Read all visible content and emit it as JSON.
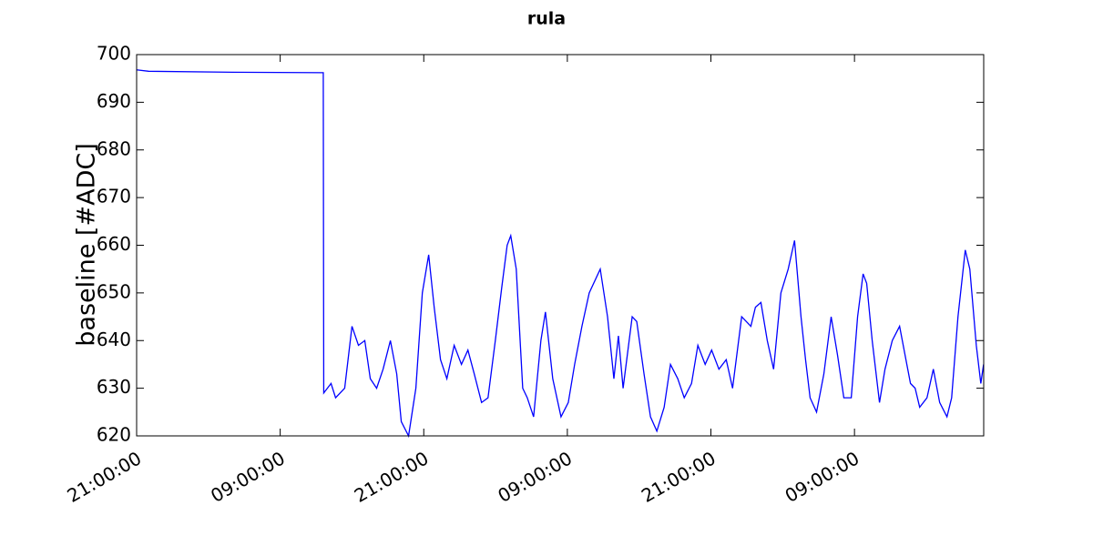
{
  "chart_data": {
    "type": "line",
    "title": "rula",
    "y_label": "baseline [#ADC]",
    "x": [
      0,
      1,
      8,
      15.6,
      15.64,
      16.25,
      16.63,
      17.39,
      18.0,
      18.54,
      19.07,
      19.53,
      20.06,
      20.6,
      21.21,
      21.74,
      22.12,
      22.73,
      23.34,
      23.88,
      24.41,
      24.87,
      25.4,
      25.93,
      26.54,
      27.15,
      27.69,
      28.22,
      28.83,
      29.37,
      29.98,
      30.51,
      30.97,
      31.27,
      31.73,
      32.27,
      32.65,
      33.18,
      33.79,
      34.17,
      34.78,
      35.47,
      36.08,
      36.61,
      37.22,
      37.83,
      38.75,
      39.36,
      39.89,
      40.27,
      40.66,
      41.42,
      41.8,
      42.41,
      42.95,
      43.48,
      44.09,
      44.62,
      45.23,
      45.77,
      46.38,
      46.91,
      47.52,
      48.06,
      48.67,
      49.28,
      49.81,
      50.57,
      51.34,
      51.72,
      52.18,
      52.71,
      53.24,
      53.85,
      54.46,
      54.99,
      55.53,
      55.91,
      56.29,
      56.83,
      57.44,
      58.05,
      58.58,
      59.11,
      59.73,
      60.26,
      60.72,
      61.02,
      61.48,
      62.09,
      62.55,
      63.16,
      63.77,
      64.3,
      64.68,
      65.07,
      65.45,
      66.06,
      66.59,
      67.12,
      67.73,
      68.12,
      68.65,
      69.26,
      69.64,
      70.18,
      70.56,
      70.79
    ],
    "series": [
      {
        "name": "baseline",
        "color": "#0000ff",
        "values": [
          696.8,
          696.5,
          696.3,
          696.2,
          629,
          631,
          628,
          630,
          643,
          639,
          640,
          632,
          630,
          634,
          640,
          633,
          623,
          620,
          630,
          650,
          658,
          647,
          636,
          632,
          639,
          635,
          638,
          633,
          627,
          628,
          640,
          651,
          660,
          662,
          655,
          630,
          628,
          624,
          640,
          646,
          632,
          624,
          627,
          635,
          643,
          650,
          655,
          645,
          632,
          641,
          630,
          645,
          644,
          633,
          624,
          621,
          626,
          635,
          632,
          628,
          631,
          639,
          635,
          638,
          634,
          636,
          630,
          645,
          643,
          647,
          648,
          640,
          634,
          650,
          655,
          661,
          645,
          636,
          628,
          625,
          633,
          645,
          637,
          628,
          628,
          645,
          654,
          652,
          640,
          627,
          634,
          640,
          643,
          636,
          631,
          630,
          626,
          628,
          634,
          627,
          624,
          628,
          645,
          659,
          655,
          639,
          631,
          635
        ]
      }
    ],
    "xlim": [
      0,
      70.8
    ],
    "xticks": [
      {
        "value": 0,
        "label": "21:00:00"
      },
      {
        "value": 12,
        "label": "09:00:00"
      },
      {
        "value": 24,
        "label": "21:00:00"
      },
      {
        "value": 36,
        "label": "09:00:00"
      },
      {
        "value": 48,
        "label": "21:00:00"
      },
      {
        "value": 60,
        "label": "09:00:00"
      }
    ],
    "ylim": [
      620,
      700
    ],
    "yticks": [
      620,
      630,
      640,
      650,
      660,
      670,
      680,
      690,
      700
    ],
    "grid": false
  }
}
